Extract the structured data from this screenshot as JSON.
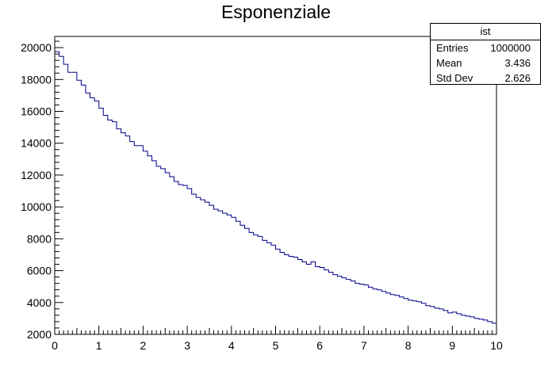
{
  "chart_data": {
    "type": "histogram",
    "title": "Esponenziale",
    "xlabel": "",
    "ylabel": "",
    "xlim": [
      0,
      10
    ],
    "ylim": [
      2000,
      20700
    ],
    "x_ticks": [
      0,
      1,
      2,
      3,
      4,
      5,
      6,
      7,
      8,
      9,
      10
    ],
    "y_ticks": [
      2000,
      4000,
      6000,
      8000,
      10000,
      12000,
      14000,
      16000,
      18000,
      20000
    ],
    "bin_width": 0.1,
    "series": [
      {
        "color": "#00008b",
        "values": [
          19750,
          19450,
          18950,
          18450,
          18450,
          17950,
          17650,
          17150,
          16850,
          16650,
          16200,
          15750,
          15450,
          15350,
          14900,
          14650,
          14450,
          14100,
          13850,
          13850,
          13500,
          13200,
          12900,
          12550,
          12400,
          12150,
          11900,
          11600,
          11400,
          11350,
          11150,
          10800,
          10600,
          10450,
          10300,
          10100,
          9850,
          9750,
          9600,
          9500,
          9350,
          9100,
          8850,
          8650,
          8400,
          8250,
          8150,
          7900,
          7750,
          7600,
          7350,
          7150,
          7000,
          6900,
          6850,
          6700,
          6550,
          6400,
          6550,
          6250,
          6200,
          6050,
          5900,
          5750,
          5650,
          5550,
          5450,
          5350,
          5200,
          5150,
          5100,
          4950,
          4850,
          4800,
          4700,
          4600,
          4500,
          4450,
          4350,
          4250,
          4150,
          4100,
          4050,
          3950,
          3800,
          3750,
          3650,
          3600,
          3500,
          3350,
          3400,
          3300,
          3200,
          3150,
          3100,
          3000,
          2950,
          2900,
          2800,
          2700
        ]
      }
    ],
    "stats": {
      "name": "ist",
      "rows": [
        {
          "label": "Entries",
          "value": "1000000"
        },
        {
          "label": "Mean",
          "value": "3.436"
        },
        {
          "label": "Std Dev",
          "value": "2.626"
        }
      ]
    }
  }
}
